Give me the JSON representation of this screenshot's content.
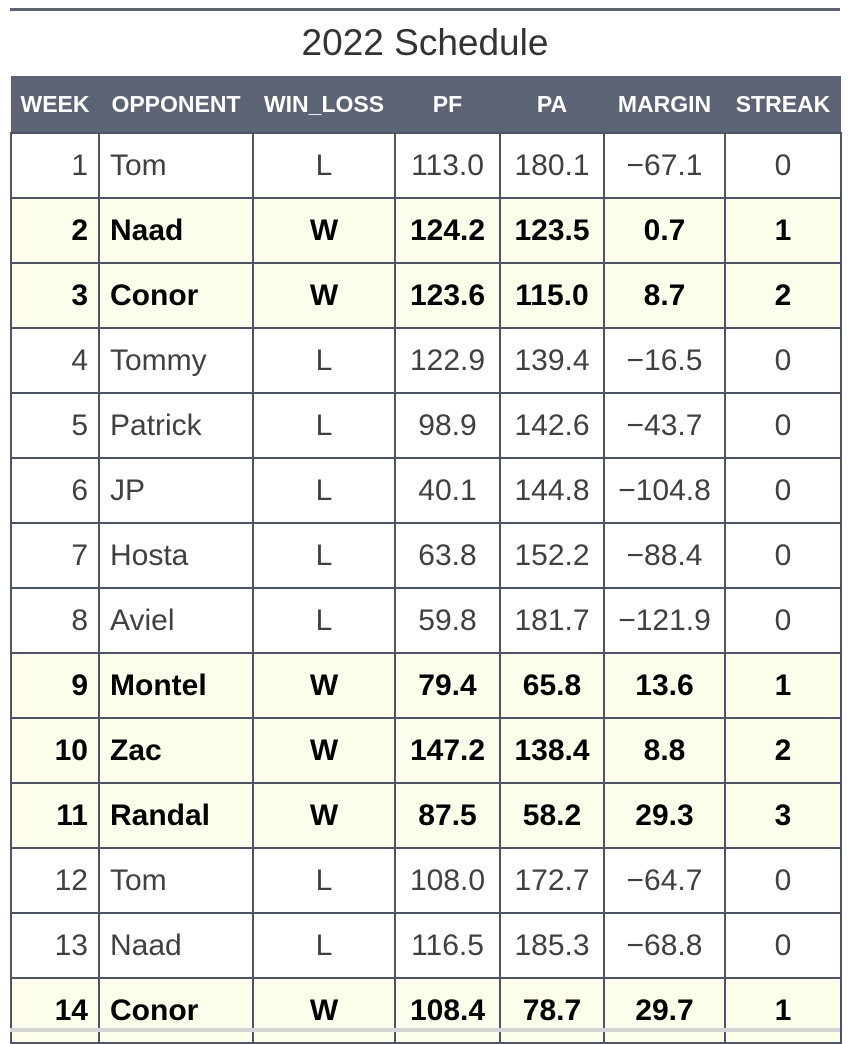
{
  "title": "2022 Schedule",
  "columns": [
    "WEEK",
    "OPPONENT",
    "WIN_LOSS",
    "PF",
    "PA",
    "MARGIN",
    "STREAK"
  ],
  "colors": {
    "header_bg": "#5c6374",
    "win_row_bg": "#fdfdec",
    "border": "#4d5466"
  },
  "rows": [
    {
      "week": "1",
      "opponent": "Tom",
      "result": "L",
      "pf": "113.0",
      "pa": "180.1",
      "margin": "−67.1",
      "streak": "0"
    },
    {
      "week": "2",
      "opponent": "Naad",
      "result": "W",
      "pf": "124.2",
      "pa": "123.5",
      "margin": "0.7",
      "streak": "1"
    },
    {
      "week": "3",
      "opponent": "Conor",
      "result": "W",
      "pf": "123.6",
      "pa": "115.0",
      "margin": "8.7",
      "streak": "2"
    },
    {
      "week": "4",
      "opponent": "Tommy",
      "result": "L",
      "pf": "122.9",
      "pa": "139.4",
      "margin": "−16.5",
      "streak": "0"
    },
    {
      "week": "5",
      "opponent": "Patrick",
      "result": "L",
      "pf": "98.9",
      "pa": "142.6",
      "margin": "−43.7",
      "streak": "0"
    },
    {
      "week": "6",
      "opponent": "JP",
      "result": "L",
      "pf": "40.1",
      "pa": "144.8",
      "margin": "−104.8",
      "streak": "0"
    },
    {
      "week": "7",
      "opponent": "Hosta",
      "result": "L",
      "pf": "63.8",
      "pa": "152.2",
      "margin": "−88.4",
      "streak": "0"
    },
    {
      "week": "8",
      "opponent": "Aviel",
      "result": "L",
      "pf": "59.8",
      "pa": "181.7",
      "margin": "−121.9",
      "streak": "0"
    },
    {
      "week": "9",
      "opponent": "Montel",
      "result": "W",
      "pf": "79.4",
      "pa": "65.8",
      "margin": "13.6",
      "streak": "1"
    },
    {
      "week": "10",
      "opponent": "Zac",
      "result": "W",
      "pf": "147.2",
      "pa": "138.4",
      "margin": "8.8",
      "streak": "2"
    },
    {
      "week": "11",
      "opponent": "Randal",
      "result": "W",
      "pf": "87.5",
      "pa": "58.2",
      "margin": "29.3",
      "streak": "3"
    },
    {
      "week": "12",
      "opponent": "Tom",
      "result": "L",
      "pf": "108.0",
      "pa": "172.7",
      "margin": "−64.7",
      "streak": "0"
    },
    {
      "week": "13",
      "opponent": "Naad",
      "result": "L",
      "pf": "116.5",
      "pa": "185.3",
      "margin": "−68.8",
      "streak": "0"
    },
    {
      "week": "14",
      "opponent": "Conor",
      "result": "W",
      "pf": "108.4",
      "pa": "78.7",
      "margin": "29.7",
      "streak": "1"
    }
  ]
}
